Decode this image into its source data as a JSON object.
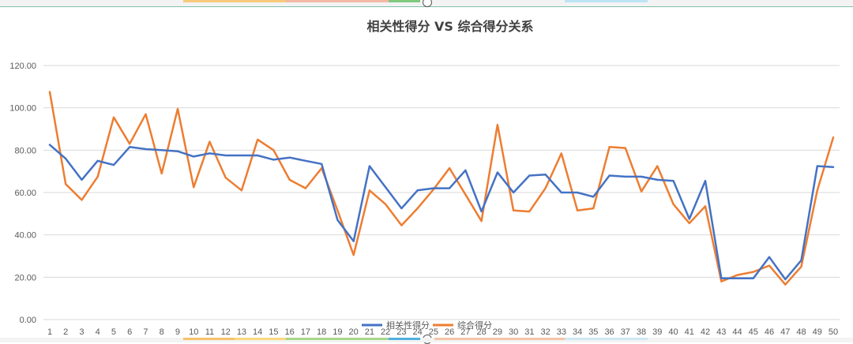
{
  "chart_data": {
    "type": "line",
    "title": "相关性得分 VS 综合得分关系",
    "xlabel": "",
    "ylabel": "",
    "ylim": [
      0,
      120
    ],
    "ytick_step": 20,
    "ytick_format_decimals": 2,
    "grid": true,
    "legend_position": "bottom",
    "x": [
      1,
      2,
      3,
      4,
      5,
      6,
      7,
      8,
      9,
      10,
      11,
      12,
      13,
      14,
      15,
      16,
      17,
      18,
      19,
      20,
      21,
      22,
      23,
      24,
      25,
      26,
      27,
      28,
      29,
      30,
      31,
      32,
      33,
      34,
      35,
      36,
      37,
      38,
      39,
      40,
      41,
      42,
      43,
      44,
      45,
      46,
      47,
      48,
      49,
      50
    ],
    "series": [
      {
        "name": "相关性得分",
        "color": "#4472c4",
        "values": [
          82.5,
          76,
          66,
          75,
          73,
          81.5,
          80.5,
          80,
          79.5,
          77,
          78.5,
          77.5,
          77.5,
          77.5,
          75.5,
          76.5,
          75,
          73.5,
          47,
          37,
          72.5,
          62.5,
          52.5,
          61,
          62,
          62,
          70.5,
          51,
          69.5,
          60,
          68,
          68.5,
          60,
          60,
          58,
          68,
          67.5,
          67.5,
          66,
          65.5,
          47.5,
          65.5,
          19.5,
          19.5,
          19.5,
          29.5,
          19,
          28,
          72.5,
          72
        ]
      },
      {
        "name": "综合得分",
        "color": "#ed7d31",
        "values": [
          107.5,
          64,
          56.5,
          67.5,
          95.5,
          83,
          97,
          69,
          99.5,
          62.5,
          84,
          67,
          61,
          85,
          80,
          66,
          62,
          71.5,
          51.5,
          30.5,
          61,
          54.5,
          44.5,
          52.5,
          61.5,
          71.5,
          59,
          46.5,
          92,
          51.5,
          51,
          62,
          78.5,
          51.5,
          52.5,
          81.5,
          81,
          60.5,
          72.5,
          54.5,
          45.5,
          53.5,
          18,
          21,
          22.5,
          25.5,
          16.5,
          25,
          61,
          86
        ]
      }
    ]
  },
  "colors": {
    "grid": "#d9d9d9",
    "frame_top": "#7fbfa8",
    "tick_text": "#595959",
    "title_text": "#404040"
  }
}
